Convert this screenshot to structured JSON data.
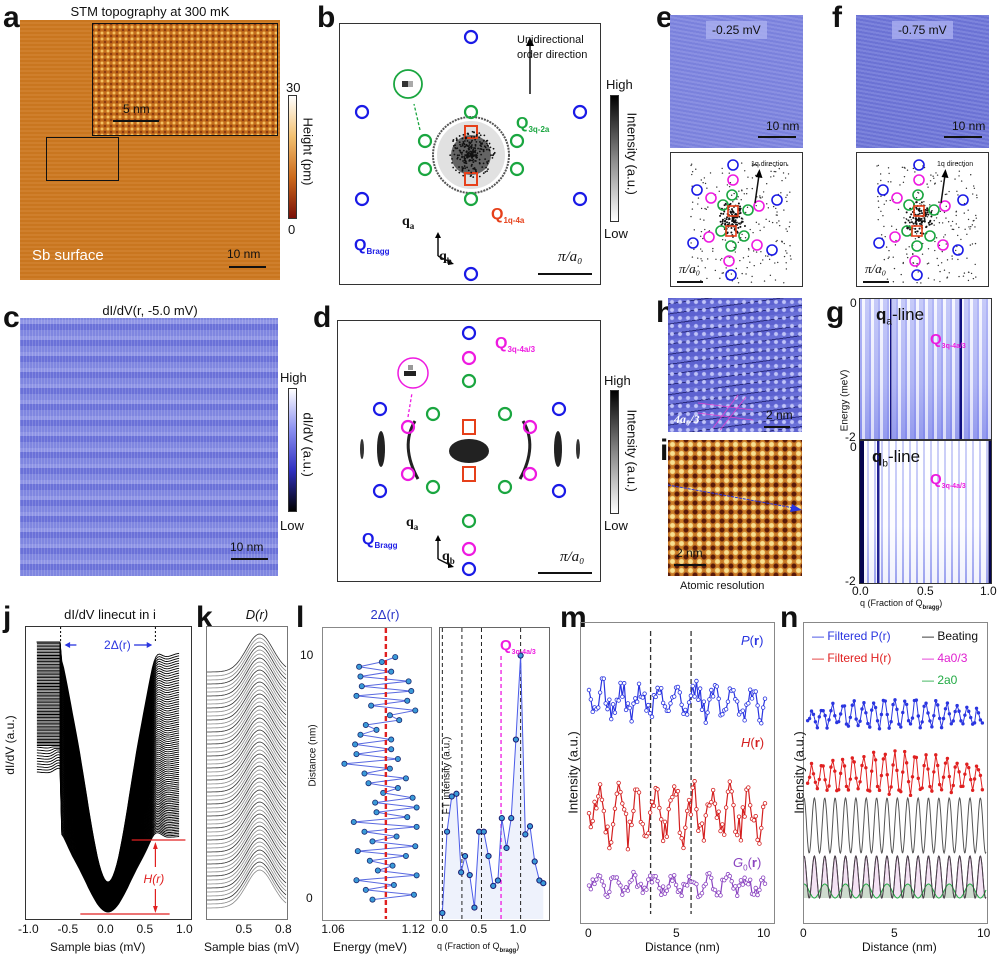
{
  "panels": {
    "a": {
      "letter": "a",
      "title": "STM topography at 300 mK",
      "inset_scale": "5 nm",
      "scale": "10 nm",
      "surface_label": "Sb surface",
      "colorbar": {
        "max": "30",
        "min": "0",
        "label": "Height (pm)"
      }
    },
    "b": {
      "letter": "b",
      "annotation": "Unidirectional order direction",
      "annotation_line1": "Unidirectional",
      "annotation_line2": "order direction",
      "q3q": "Q",
      "q3q_sub": "3q-2a",
      "q1q": "Q",
      "q1q_sub": "1q-4a",
      "qbragg": "Q",
      "qbragg_sub": "Bragg",
      "qa": "q",
      "qa_sub": "a",
      "qb": "q",
      "qb_sub": "b",
      "scale": "π/a₀",
      "colorbar": {
        "max": "High",
        "min": "Low",
        "label": "Intensity (a.u.)"
      }
    },
    "c": {
      "letter": "c",
      "title": "dI/dV(r, -5.0 mV)",
      "scale": "10 nm",
      "colorbar": {
        "max": "High",
        "min": "Low",
        "label": "dI/dV (a.u.)"
      }
    },
    "d": {
      "letter": "d",
      "q3q": "Q",
      "q3q_sub": "3q-4a/3",
      "qbragg": "Q",
      "qbragg_sub": "Bragg",
      "qa": "q",
      "qa_sub": "a",
      "qb": "q",
      "qb_sub": "b",
      "scale": "π/a₀",
      "colorbar": {
        "max": "High",
        "min": "Low",
        "label": "Intensity (a.u.)"
      }
    },
    "e": {
      "letter": "e",
      "bias": "-0.25 mV",
      "scale": "10 nm",
      "direction": "1q direction",
      "fft_scale": "π/a₀"
    },
    "f": {
      "letter": "f",
      "bias": "-0.75 mV",
      "scale": "10 nm",
      "direction": "1q direction",
      "fft_scale": "π/a₀"
    },
    "g": {
      "letter": "g",
      "top_label": "q",
      "top_label_sub": "a",
      "top_label_suffix": "-line",
      "bottom_label": "q",
      "bottom_label_sub": "b",
      "bottom_label_suffix": "-line",
      "q_label": "Q",
      "q_label_sub": "3q-4a/3",
      "ylabel": "Energy (meV)",
      "xlabel": "q (Fraction of Q",
      "xlabel_sub": "bragg",
      "xlabel_end": ")",
      "yticks_top": [
        "0",
        "-2"
      ],
      "yticks_bottom": [
        "0",
        "-2"
      ],
      "xticks": [
        "0.0",
        "0.5",
        "1.0"
      ]
    },
    "h": {
      "letter": "h",
      "scale": "2 nm",
      "period_label": "4a₀/3"
    },
    "i": {
      "letter": "i",
      "scale": "2 nm",
      "caption": "Atomic resolution"
    }
  },
  "chart_data": [
    {
      "id": "j",
      "type": "line",
      "letter": "j",
      "title": "dI/dV linecut in i",
      "xlabel": "Sample bias (mV)",
      "ylabel": "dI/dV (a.u.)",
      "xlim": [
        -1.0,
        1.0
      ],
      "xticks": [
        "-1.0",
        "-0.5",
        "0.0",
        "0.5",
        "1.0"
      ],
      "n_curves": 90,
      "peak_positions_mV": [
        -0.6,
        0.6
      ],
      "annotations": {
        "gap": "2Δ(r)",
        "height": "H(r)"
      }
    },
    {
      "id": "k",
      "type": "line",
      "letter": "k",
      "title": "D(r)",
      "xlabel": "Sample bias (mV)",
      "xlim": [
        0.2,
        0.8
      ],
      "xticks": [
        "0.5",
        "0.8"
      ],
      "n_curves": 60,
      "peak_position_mV": 0.6
    },
    {
      "id": "l-left",
      "type": "line",
      "letter": "l",
      "title": "2Δ(r)",
      "xlabel": "Energy (meV)",
      "ylabel": "Distance (nm)",
      "xlim": [
        1.05,
        1.13
      ],
      "ylim": [
        -0.8,
        11.2
      ],
      "xticks": [
        "1.06",
        "1.12"
      ],
      "yticks": [
        "0",
        "10"
      ],
      "mean_line": 1.097,
      "series": [
        {
          "name": "2Δ(r)",
          "distance": [
            0.0,
            0.2,
            0.4,
            0.6,
            0.8,
            1.0,
            1.2,
            1.4,
            1.6,
            1.8,
            2.0,
            2.2,
            2.4,
            2.6,
            2.8,
            3.0,
            3.2,
            3.4,
            3.6,
            3.8,
            4.0,
            4.2,
            4.4,
            4.6,
            4.8,
            5.0,
            5.2,
            5.4,
            5.6,
            5.8,
            6.0,
            6.2,
            6.4,
            6.6,
            6.8,
            7.0,
            7.2,
            7.4,
            7.6,
            7.8,
            8.0,
            8.2,
            8.4,
            8.6,
            8.8,
            9.0,
            9.2,
            9.4,
            9.6,
            9.8,
            10.0
          ],
          "energy": [
            1.087,
            1.118,
            1.082,
            1.103,
            1.075,
            1.12,
            1.091,
            1.102,
            1.085,
            1.112,
            1.076,
            1.119,
            1.087,
            1.105,
            1.081,
            1.12,
            1.073,
            1.113,
            1.09,
            1.12,
            1.089,
            1.117,
            1.095,
            1.106,
            1.084,
            1.112,
            1.081,
            1.1,
            1.066,
            1.106,
            1.075,
            1.101,
            1.074,
            1.101,
            1.078,
            1.09,
            1.082,
            1.107,
            1.1,
            1.119,
            1.086,
            1.113,
            1.075,
            1.116,
            1.079,
            1.114,
            1.078,
            1.101,
            1.077,
            1.094,
            1.104
          ]
        }
      ]
    },
    {
      "id": "l-right",
      "type": "line",
      "xlabel": "q (Fraction of Q",
      "xlabel_sub": "bragg",
      "xlabel_end": ")",
      "ylabel": "FT intensity (a.u.)",
      "xlim": [
        -0.03,
        1.35
      ],
      "xticks": [
        "0.0",
        "0.5",
        "1.0"
      ],
      "dashed_lines": [
        0.0,
        0.25,
        0.5,
        1.0
      ],
      "q_marker": 0.75,
      "q_marker_label": "Q",
      "q_marker_sub": "3q-4a/3",
      "series": [
        {
          "name": "FT intensity",
          "q": [
            0.0,
            0.06,
            0.12,
            0.18,
            0.24,
            0.29,
            0.35,
            0.41,
            0.47,
            0.53,
            0.59,
            0.65,
            0.71,
            0.76,
            0.82,
            0.88,
            0.94,
            1.0,
            1.06,
            1.12,
            1.18,
            1.24,
            1.29
          ],
          "intensity": [
            0.0,
            0.3,
            0.43,
            0.44,
            0.15,
            0.21,
            0.14,
            0.02,
            0.3,
            0.3,
            0.21,
            0.1,
            0.12,
            0.35,
            0.24,
            0.35,
            0.64,
            0.95,
            0.29,
            0.32,
            0.19,
            0.12,
            0.11
          ]
        }
      ]
    },
    {
      "id": "m",
      "type": "line",
      "letter": "m",
      "xlabel": "Distance (nm)",
      "ylabel": "Intensity (a.u.)",
      "xlim": [
        0,
        10
      ],
      "xticks": [
        "0",
        "5",
        "10"
      ],
      "dashed_lines": [
        3.5,
        5.8
      ],
      "series": [
        {
          "name": "P(r)",
          "name_main": "P",
          "color": "#2a35e0"
        },
        {
          "name": "H(r)",
          "name_main": "H",
          "color": "#d42020"
        },
        {
          "name": "G0(r)",
          "name_main": "G",
          "name_sub": "0",
          "color": "#8a44c0"
        }
      ]
    },
    {
      "id": "n",
      "type": "line",
      "letter": "n",
      "xlabel": "Distance (nm)",
      "ylabel": "Intensity (a.u.)",
      "xlim": [
        0,
        10
      ],
      "xticks": [
        "0",
        "5",
        "10"
      ],
      "legend": [
        {
          "label": "Filtered P(r)",
          "pre": "Filtered ",
          "main": "P",
          "color": "#2a35e0"
        },
        {
          "label": "Filtered H(r)",
          "pre": "Filtered ",
          "main": "H",
          "color": "#e02020"
        },
        {
          "label": "Beating",
          "color": "#222222"
        },
        {
          "label": "4a0/3",
          "color": "#e020d0"
        },
        {
          "label": "2a0",
          "color": "#22aa44"
        }
      ],
      "legend_position": "top"
    }
  ],
  "colors": {
    "blue": "#1a1ae6",
    "green": "#1aa640",
    "magenta": "#ee1ae0",
    "red": "#e6401a",
    "afm": "#c8741e",
    "dIdV": "#6f77dd"
  }
}
